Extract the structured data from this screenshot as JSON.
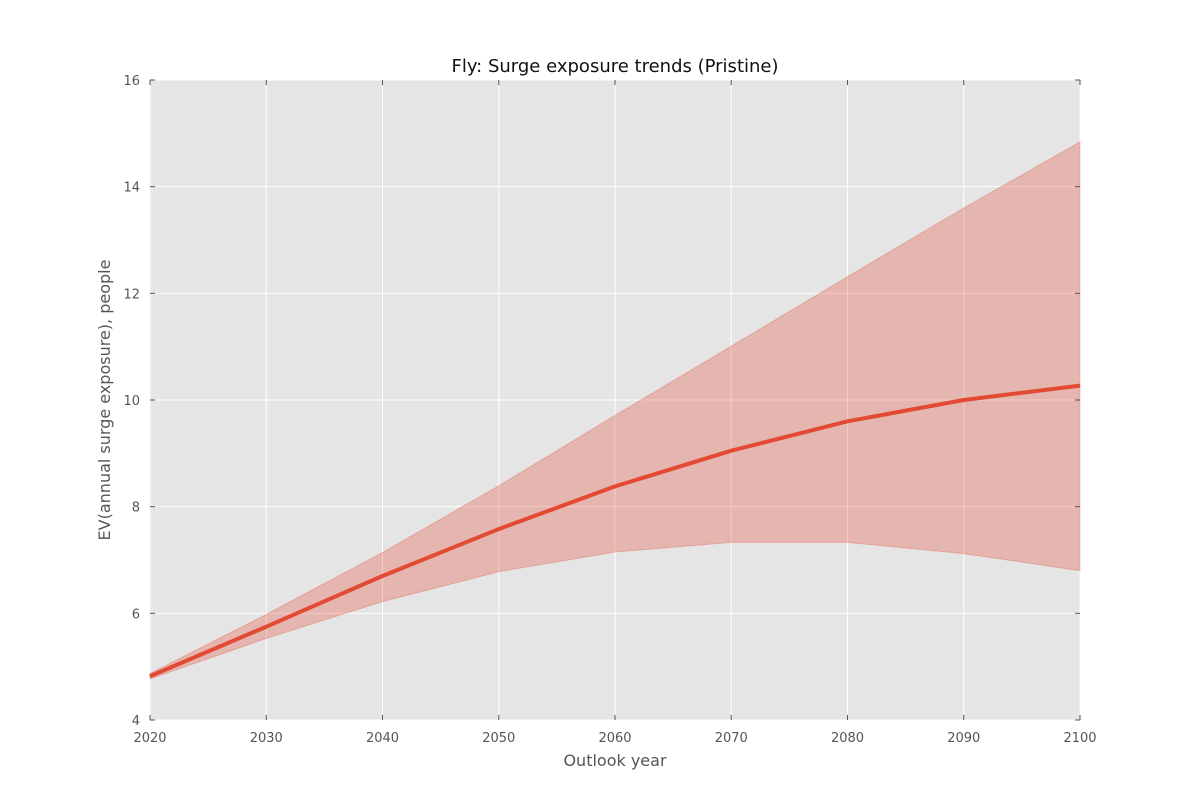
{
  "chart_data": {
    "type": "line",
    "title": "Fly: Surge exposure trends (Pristine)",
    "xlabel": "Outlook year",
    "ylabel": "EV(annual surge exposure), people",
    "xlim": [
      2020,
      2100
    ],
    "ylim": [
      4,
      16
    ],
    "grid": true,
    "legend": "none",
    "x_ticks": [
      "2020",
      "2030",
      "2040",
      "2050",
      "2060",
      "2070",
      "2080",
      "2090",
      "2100"
    ],
    "y_ticks": [
      "4",
      "6",
      "8",
      "10",
      "12",
      "14",
      "16"
    ],
    "x": [
      2020,
      2030,
      2040,
      2050,
      2060,
      2070,
      2080,
      2090,
      2100
    ],
    "series": [
      {
        "values": [
          4.82,
          5.75,
          6.7,
          7.58,
          8.38,
          9.05,
          9.6,
          10.0,
          10.27
        ],
        "lower": [
          4.77,
          5.53,
          6.22,
          6.78,
          7.15,
          7.33,
          7.33,
          7.12,
          6.8
        ],
        "upper": [
          4.87,
          5.98,
          7.14,
          8.39,
          9.71,
          11.01,
          12.31,
          13.6,
          14.84
        ]
      }
    ],
    "colors": {
      "line": "#e24a33",
      "band": "#e24a33",
      "plot_background": "#e5e5e5",
      "grid": "#ffffff"
    }
  }
}
